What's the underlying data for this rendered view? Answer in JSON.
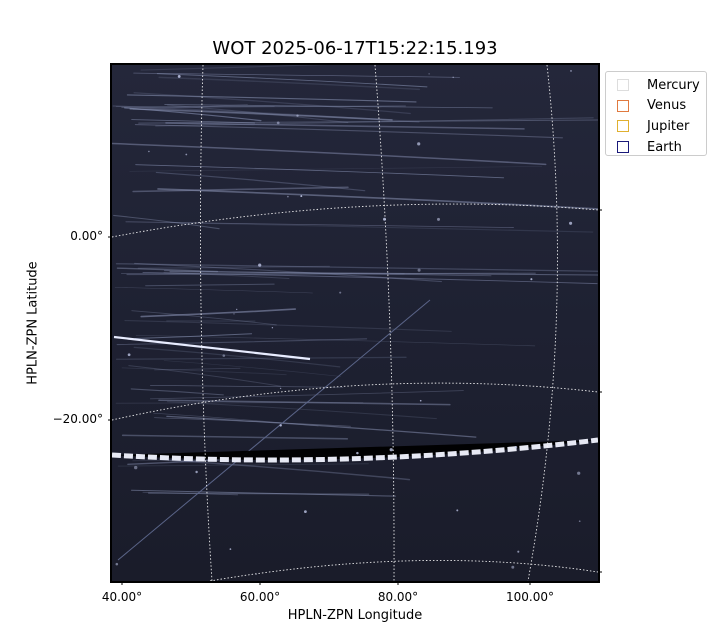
{
  "chart_data": {
    "type": "image",
    "title": "WOT 2025-06-17T15:22:15.193",
    "xlabel": "HPLN-ZPN Longitude",
    "ylabel": "HPLN-ZPN Latitude",
    "xticks": [
      "40.00°",
      "60.00°",
      "80.00°",
      "100.00°"
    ],
    "yticks": [
      "0.00°",
      "−20.00°"
    ],
    "grid": true,
    "legend_position": "upper-right-outside",
    "legend": [
      {
        "name": "Mercury",
        "color": "#dddddd"
      },
      {
        "name": "Venus",
        "color": "#e07a3f"
      },
      {
        "name": "Jupiter",
        "color": "#e0b030"
      },
      {
        "name": "Earth",
        "color": "#1a1a7a"
      }
    ]
  }
}
